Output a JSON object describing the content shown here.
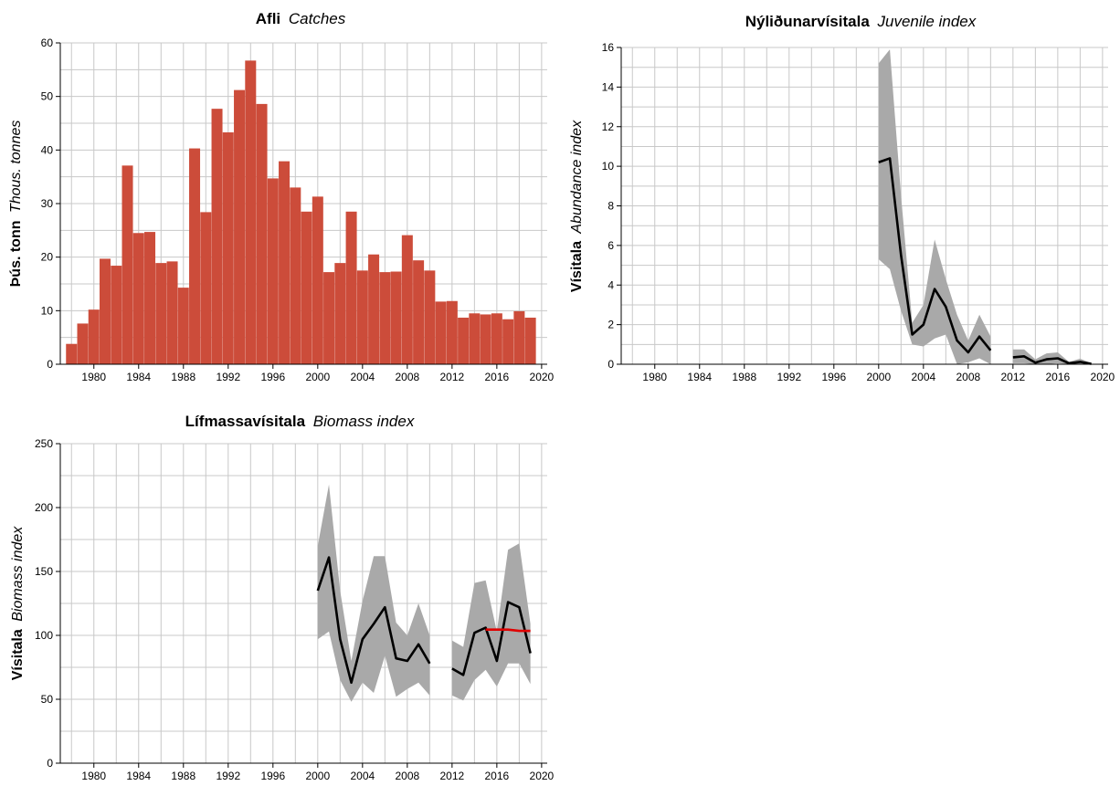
{
  "chart_data": [
    {
      "type": "bar",
      "title": "Afli",
      "title_italic": "Catches",
      "ylabel": "Þús. tonn",
      "ylabel_italic": "Thous. tonnes",
      "xlim": [
        1977,
        2020.5
      ],
      "ylim": [
        0,
        60
      ],
      "xticks": [
        1980,
        1984,
        1988,
        1992,
        1996,
        2000,
        2004,
        2008,
        2012,
        2016,
        2020
      ],
      "yticks": [
        0,
        10,
        20,
        30,
        40,
        50,
        60
      ],
      "grid": true,
      "color": "#cc4c3a",
      "x": [
        1978,
        1979,
        1980,
        1981,
        1982,
        1983,
        1984,
        1985,
        1986,
        1987,
        1988,
        1989,
        1990,
        1991,
        1992,
        1993,
        1994,
        1995,
        1996,
        1997,
        1998,
        1999,
        2000,
        2001,
        2002,
        2003,
        2004,
        2005,
        2006,
        2007,
        2008,
        2009,
        2010,
        2011,
        2012,
        2013,
        2014,
        2015,
        2016,
        2017,
        2018,
        2019
      ],
      "values": [
        3.8,
        7.6,
        10.2,
        19.7,
        18.4,
        37.1,
        24.5,
        24.7,
        18.9,
        19.2,
        14.3,
        40.3,
        28.4,
        47.7,
        43.3,
        51.2,
        56.7,
        48.6,
        34.7,
        37.9,
        33.0,
        28.5,
        31.3,
        17.2,
        18.9,
        28.5,
        17.5,
        20.5,
        17.2,
        17.3,
        24.1,
        19.4,
        17.5,
        11.7,
        11.8,
        8.7,
        9.5,
        9.3,
        9.5,
        8.4,
        9.9,
        8.7
      ]
    },
    {
      "type": "line",
      "title": "Nýliðunarvísitala",
      "title_italic": "Juvenile index",
      "ylabel": "Vísitala",
      "ylabel_italic": "Abundance index",
      "xlim": [
        1977,
        2020.5
      ],
      "ylim": [
        0,
        16
      ],
      "xticks": [
        1980,
        1984,
        1988,
        1992,
        1996,
        2000,
        2004,
        2008,
        2012,
        2016,
        2020
      ],
      "yticks": [
        0,
        2,
        4,
        6,
        8,
        10,
        12,
        14,
        16
      ],
      "grid": true,
      "band_color": "#a9a9a9",
      "segments": [
        {
          "x": [
            2000,
            2001,
            2002,
            2003,
            2004,
            2005,
            2006,
            2007,
            2008,
            2009,
            2010
          ],
          "y": [
            10.2,
            10.4,
            5.5,
            1.5,
            2.0,
            3.8,
            2.9,
            1.2,
            0.6,
            1.4,
            0.7
          ],
          "lower": [
            5.3,
            4.8,
            2.7,
            1.0,
            0.9,
            1.3,
            1.5,
            0.0,
            0.1,
            0.3,
            0.0
          ],
          "upper": [
            15.2,
            15.9,
            8.5,
            2.1,
            3.0,
            6.3,
            4.3,
            2.5,
            1.2,
            2.5,
            1.4
          ]
        },
        {
          "x": [
            2012,
            2013,
            2014,
            2015,
            2016,
            2017,
            2018,
            2019
          ],
          "y": [
            0.35,
            0.4,
            0.08,
            0.25,
            0.3,
            0.05,
            0.12,
            0.02
          ],
          "lower": [
            0.05,
            0.05,
            0.0,
            0.0,
            0.05,
            0.0,
            0.0,
            0.0
          ],
          "upper": [
            0.75,
            0.75,
            0.25,
            0.55,
            0.6,
            0.12,
            0.28,
            0.05
          ]
        }
      ]
    },
    {
      "type": "line",
      "title": "Lífmassavísitala",
      "title_italic": "Biomass index",
      "ylabel": "Vísitala",
      "ylabel_italic": "Biomass index",
      "xlim": [
        1977,
        2020.5
      ],
      "ylim": [
        0,
        250
      ],
      "xticks": [
        1980,
        1984,
        1988,
        1992,
        1996,
        2000,
        2004,
        2008,
        2012,
        2016,
        2020
      ],
      "yticks": [
        0,
        50,
        100,
        150,
        200,
        250
      ],
      "grid": true,
      "band_color": "#a9a9a9",
      "segments": [
        {
          "x": [
            2000,
            2001,
            2002,
            2003,
            2004,
            2005,
            2006,
            2007,
            2008,
            2009,
            2010
          ],
          "y": [
            135,
            161,
            97,
            63,
            97,
            109,
            122,
            82,
            80,
            93,
            78
          ],
          "lower": [
            97,
            103,
            65,
            48,
            63,
            55,
            84,
            52,
            58,
            63,
            53
          ],
          "upper": [
            170,
            218,
            135,
            80,
            127,
            162,
            162,
            110,
            100,
            125,
            100
          ]
        },
        {
          "x": [
            2012,
            2013,
            2014,
            2015,
            2016,
            2017,
            2018,
            2019
          ],
          "y": [
            74,
            69,
            102,
            106,
            80,
            126,
            122,
            86
          ],
          "lower": [
            53,
            49,
            65,
            73,
            60,
            78,
            78,
            62
          ],
          "upper": [
            96,
            91,
            141,
            143,
            103,
            167,
            172,
            109
          ]
        }
      ],
      "reference_line": {
        "color": "#e00000",
        "x": [
          2015,
          2016,
          2017,
          2018,
          2019
        ],
        "y": [
          104.5,
          104.5,
          104.5,
          103.5,
          103.5
        ]
      }
    }
  ]
}
